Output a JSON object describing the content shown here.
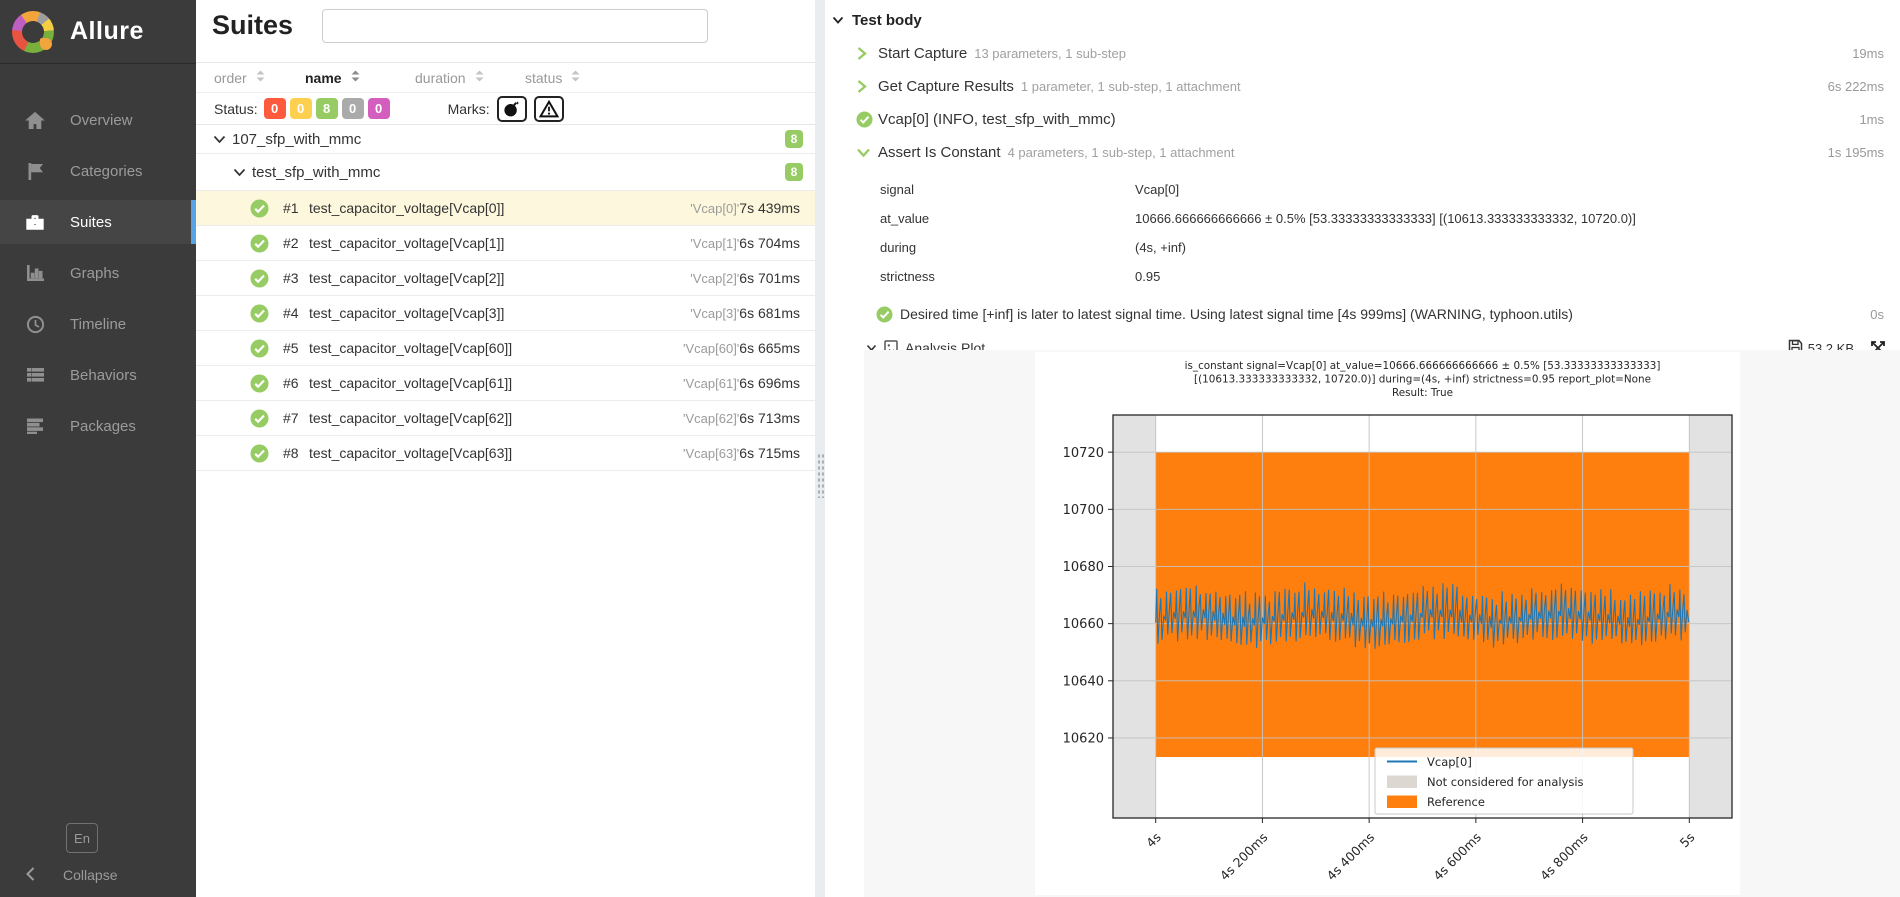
{
  "sidebar": {
    "logo_text": "Allure",
    "items": [
      {
        "label": "Overview",
        "icon": "home-icon",
        "active": false
      },
      {
        "label": "Categories",
        "icon": "flag-icon",
        "active": false
      },
      {
        "label": "Suites",
        "icon": "briefcase-icon",
        "active": true
      },
      {
        "label": "Graphs",
        "icon": "bar-chart-icon",
        "active": false
      },
      {
        "label": "Timeline",
        "icon": "clock-icon",
        "active": false
      },
      {
        "label": "Behaviors",
        "icon": "list-icon",
        "active": false
      },
      {
        "label": "Packages",
        "icon": "align-lines-icon",
        "active": false
      }
    ],
    "language": "En",
    "collapse_label": "Collapse",
    "accent_color": "#57a3e4",
    "background_color": "#3b3b3b"
  },
  "suites_panel": {
    "title": "Suites",
    "search": {
      "value": "",
      "placeholder": ""
    },
    "columns": [
      {
        "label": "order",
        "active": false
      },
      {
        "label": "name",
        "active": true
      },
      {
        "label": "duration",
        "active": false
      },
      {
        "label": "status",
        "active": false
      }
    ],
    "status_filter": {
      "label": "Status:",
      "badges": [
        {
          "status": "failed",
          "count": 0,
          "color": "#fd5a3e"
        },
        {
          "status": "broken",
          "count": 0,
          "color": "#ffd050"
        },
        {
          "status": "passed",
          "count": 8,
          "color": "#97cc64"
        },
        {
          "status": "skipped",
          "count": 0,
          "color": "#aaaaaa"
        },
        {
          "status": "unknown",
          "count": 0,
          "color": "#d35ebe"
        }
      ]
    },
    "marks": {
      "label": "Marks:",
      "buttons": [
        "flaky-bomb",
        "warning-triangle"
      ]
    },
    "tree": {
      "root_group": {
        "name": "107_sfp_with_mmc",
        "badge": "8"
      },
      "sub_group": {
        "name": "test_sfp_with_mmc",
        "badge": "8"
      },
      "tests": [
        {
          "order": "#1",
          "name": "test_capacitor_voltage[Vcap[0]]",
          "tag": "'Vcap[0]'",
          "duration": "7s 439ms",
          "selected": true
        },
        {
          "order": "#2",
          "name": "test_capacitor_voltage[Vcap[1]]",
          "tag": "'Vcap[1]'",
          "duration": "6s 704ms",
          "selected": false
        },
        {
          "order": "#3",
          "name": "test_capacitor_voltage[Vcap[2]]",
          "tag": "'Vcap[2]'",
          "duration": "6s 701ms",
          "selected": false
        },
        {
          "order": "#4",
          "name": "test_capacitor_voltage[Vcap[3]]",
          "tag": "'Vcap[3]'",
          "duration": "6s 681ms",
          "selected": false
        },
        {
          "order": "#5",
          "name": "test_capacitor_voltage[Vcap[60]]",
          "tag": "'Vcap[60]'",
          "duration": "6s 665ms",
          "selected": false
        },
        {
          "order": "#6",
          "name": "test_capacitor_voltage[Vcap[61]]",
          "tag": "'Vcap[61]'",
          "duration": "6s 696ms",
          "selected": false
        },
        {
          "order": "#7",
          "name": "test_capacitor_voltage[Vcap[62]]",
          "tag": "'Vcap[62]'",
          "duration": "6s 713ms",
          "selected": false
        },
        {
          "order": "#8",
          "name": "test_capacitor_voltage[Vcap[63]]",
          "tag": "'Vcap[63]'",
          "duration": "6s 715ms",
          "selected": false
        }
      ]
    }
  },
  "test_panel": {
    "section_title": "Test body",
    "steps": [
      {
        "name": "Start Capture",
        "meta": "13 parameters, 1 sub-step",
        "duration": "19ms",
        "icon": "chevron-right"
      },
      {
        "name": "Get Capture Results",
        "meta": "1 parameter, 1 sub-step, 1 attachment",
        "duration": "6s 222ms",
        "icon": "chevron-right"
      },
      {
        "name": "Vcap[0] (INFO, test_sfp_with_mmc)",
        "meta": "",
        "duration": "1ms",
        "icon": "check-circle"
      },
      {
        "name": "Assert Is Constant",
        "meta": "4 parameters, 1 sub-step, 1 attachment",
        "duration": "1s 195ms",
        "icon": "chevron-down"
      }
    ],
    "parameters": [
      {
        "name": "signal",
        "value": "Vcap[0]"
      },
      {
        "name": "at_value",
        "value": "10666.666666666666 ± 0.5% [53.33333333333333] [(10613.333333333332, 10720.0)]"
      },
      {
        "name": "during",
        "value": "(4s, +inf)"
      },
      {
        "name": "strictness",
        "value": "0.95"
      }
    ],
    "sub_step": {
      "name": "Desired time [+inf] is later to latest signal time. Using latest signal time [4s 999ms] (WARNING, typhoon.utils)",
      "duration": "0s"
    },
    "attachment": {
      "name": "Analysis Plot",
      "size": "53.2 KB"
    }
  },
  "chart_data": {
    "type": "line",
    "title_lines": [
      "is_constant signal=Vcap[0] at_value=10666.666666666666 ± 0.5% [53.33333333333333]",
      "[(10613.333333333332, 10720.0)] during=(4s, +inf) strictness=0.95 report_plot=None",
      "Result: True"
    ],
    "xlabel": "",
    "ylabel": "",
    "xlim": [
      3.92,
      5.08
    ],
    "ylim": [
      10592,
      10733
    ],
    "x_ticks": [
      {
        "value": 4.0,
        "label": "4s"
      },
      {
        "value": 4.2,
        "label": "4s 200ms"
      },
      {
        "value": 4.4,
        "label": "4s 400ms"
      },
      {
        "value": 4.6,
        "label": "4s 600ms"
      },
      {
        "value": 4.8,
        "label": "4s 800ms"
      },
      {
        "value": 5.0,
        "label": "5s"
      }
    ],
    "y_ticks": [
      10620,
      10640,
      10660,
      10680,
      10700,
      10720
    ],
    "grid": true,
    "series": [
      {
        "name": "Vcap[0]",
        "color": "#1f77b4",
        "x_start": 4.0,
        "x_end": 4.999,
        "baseline": 10662.5,
        "ripple_peak": 10671.5,
        "ripple_trough": 10654.0,
        "cycles_visible": 54,
        "description": "high-frequency ripple around constant value"
      }
    ],
    "reference_band": {
      "label": "Reference",
      "color": "#ff7f0e",
      "x_min": 4.0,
      "x_max": 5.0,
      "y_min": 10613.333333333332,
      "y_max": 10720.0
    },
    "excluded_bands": {
      "label": "Not considered for analysis",
      "color": "#e2e2e2",
      "legend_swatch": "#dcd7d1",
      "ranges": [
        [
          3.92,
          4.0
        ],
        [
          5.0,
          5.08
        ]
      ]
    },
    "legend": {
      "position": "lower center-right",
      "entries": [
        "Vcap[0]",
        "Not considered for analysis",
        "Reference"
      ]
    }
  }
}
